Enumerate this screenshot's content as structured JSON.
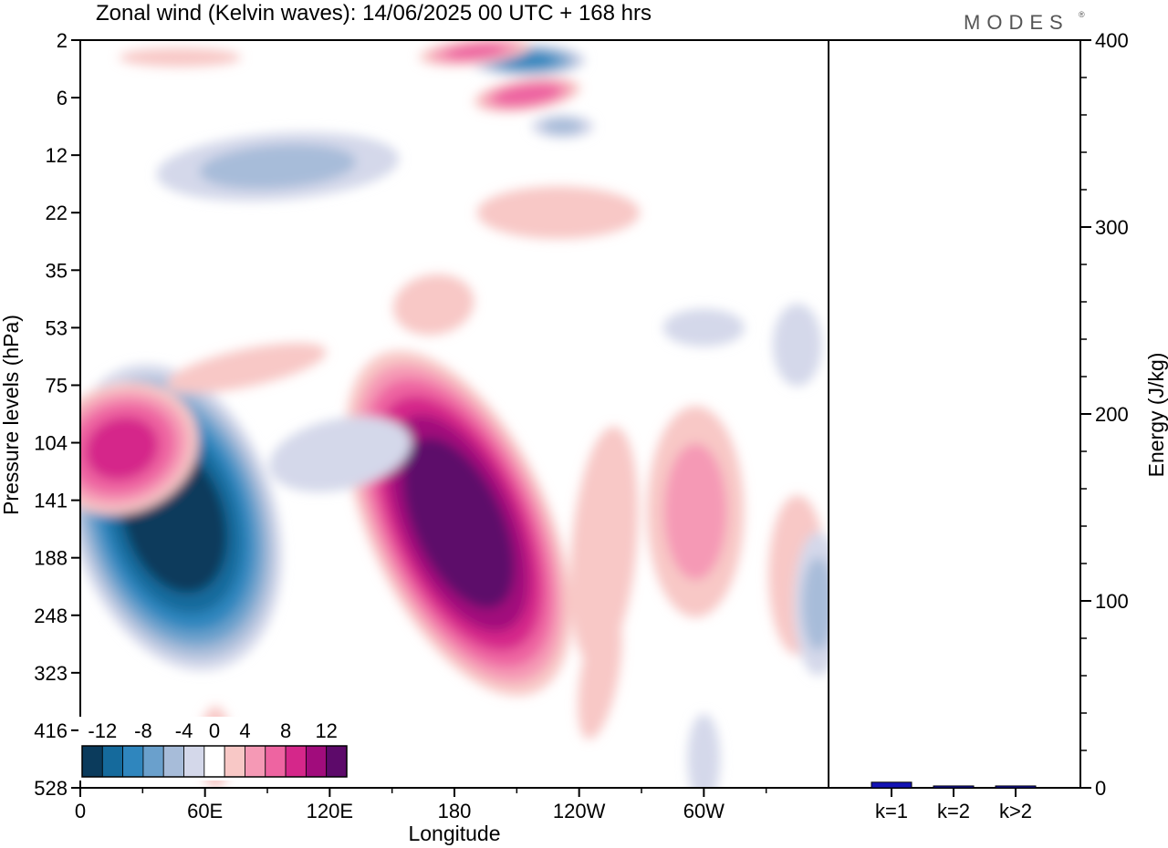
{
  "header": {
    "title": "Zonal wind (Kelvin waves):  14/06/2025  00 UTC  + 168 hrs",
    "logo_text": "MODES",
    "logo_mark": "®"
  },
  "chart_data": [
    {
      "type": "heatmap",
      "title": "Zonal wind (Kelvin waves):  14/06/2025  00 UTC  + 168 hrs",
      "xlabel": "Longitude",
      "ylabel": "Pressure levels (hPa)",
      "x_ticks": [
        "0",
        "60E",
        "120E",
        "180",
        "120W",
        "60W"
      ],
      "x_tick_degrees": [
        0,
        60,
        120,
        180,
        240,
        300
      ],
      "xlim": [
        0,
        360
      ],
      "y_levels": [
        "2",
        "6",
        "12",
        "22",
        "35",
        "53",
        "75",
        "104",
        "141",
        "188",
        "248",
        "323",
        "416",
        "528"
      ],
      "y_scale": "pressure levels (top 2 hPa, bottom 528 hPa)",
      "colorbar": {
        "labels": [
          "-12",
          "-8",
          "-4",
          "0",
          "4",
          "8",
          "12"
        ],
        "boundaries": [
          -14,
          -12,
          -10,
          -8,
          -6,
          -4,
          -2,
          2,
          4,
          6,
          8,
          10,
          12,
          14
        ],
        "colors": [
          "#0b3b5c",
          "#156a9c",
          "#2f86be",
          "#6aa0cc",
          "#a7bcd9",
          "#d4d8ea",
          "#ffffff",
          "#f8c8c6",
          "#f599b5",
          "#ee64a1",
          "#d5278a",
          "#a10c7c",
          "#5d0a6a"
        ],
        "placement": "bottom-left"
      },
      "features": [
        {
          "sign": "negative",
          "peak": -14,
          "lon_center": 45,
          "level_center": "141"
        },
        {
          "sign": "positive",
          "peak": 14,
          "lon_center": 180,
          "level_center": "141"
        },
        {
          "sign": "positive",
          "peak": 8,
          "lon_center": 20,
          "level_center": "104"
        },
        {
          "sign": "positive",
          "peak": 4,
          "lon_center": 295,
          "level_center": "141"
        }
      ]
    },
    {
      "type": "bar",
      "ylabel": "Energy (J/kg)",
      "categories": [
        "k=1",
        "k=2",
        "k>2"
      ],
      "values": [
        3,
        1,
        1
      ],
      "ylim": [
        0,
        400
      ],
      "y_ticks": [
        "0",
        "100",
        "200",
        "300",
        "400"
      ],
      "bar_color": "#1414b4"
    }
  ]
}
